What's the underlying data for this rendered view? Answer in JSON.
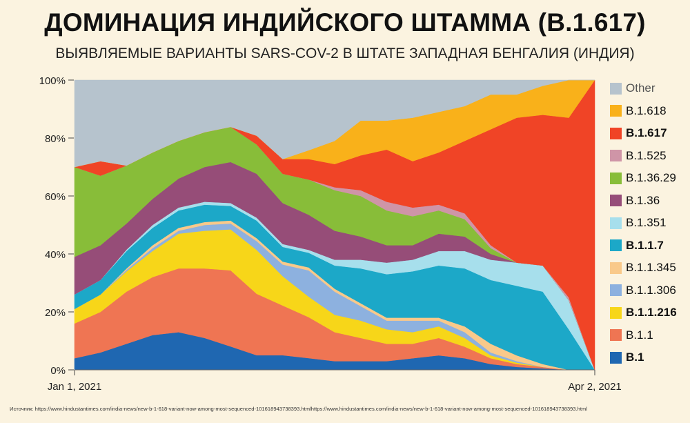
{
  "header": {
    "title": "ДОМИНАЦИЯ ИНДИЙСКОГО ШТАММА (B.1.617)",
    "subtitle": "ВЫЯВЛЯЕМЫЕ ВАРИАНТЫ SARS-COV-2 В ШТАТЕ ЗАПАДНАЯ БЕНГАЛИЯ (ИНДИЯ)"
  },
  "footer": {
    "source": "Источник: https://www.hindustantimes.com/india-news/new-b-1-618-variant-now-among-most-sequenced-101618943738393.htmlhttps://www.hindustantimes.com/india-news/new-b-1-618-variant-now-among-most-sequenced-101618943738393.html"
  },
  "chart_data": {
    "type": "area",
    "stacked": true,
    "normalized": true,
    "ylim": [
      0,
      100
    ],
    "y_ticks": [
      "0%",
      "20%",
      "40%",
      "60%",
      "80%",
      "100%"
    ],
    "x_tick_labels": [
      "Jan 1, 2021",
      "Apr 2, 2021"
    ],
    "x": [
      0,
      5,
      10,
      15,
      20,
      25,
      30,
      35,
      40,
      45,
      50,
      55,
      60,
      65,
      70,
      75,
      80,
      85,
      90,
      95,
      100
    ],
    "series": [
      {
        "name": "B.1",
        "color": "#1f67b1",
        "bold": true,
        "values": [
          4,
          6,
          9,
          12,
          13,
          11,
          8,
          5,
          5,
          4,
          3,
          3,
          3,
          4,
          5,
          4,
          2,
          1,
          0.5,
          0,
          0
        ]
      },
      {
        "name": "B.1.1",
        "color": "#ef7553",
        "bold": false,
        "values": [
          12,
          14,
          18,
          20,
          22,
          24,
          26,
          21,
          17,
          14,
          10,
          8,
          6,
          5,
          6,
          4,
          2,
          1,
          0.5,
          0,
          0
        ]
      },
      {
        "name": "B.1.1.216",
        "color": "#f7d619",
        "bold": true,
        "values": [
          5,
          6,
          7,
          9,
          12,
          13,
          14,
          15,
          10,
          7,
          6,
          6,
          5,
          4,
          4,
          3,
          1,
          0.5,
          0,
          0,
          0
        ]
      },
      {
        "name": "B.1.1.306",
        "color": "#8db1df",
        "bold": false,
        "values": [
          0,
          0,
          0.5,
          1,
          1,
          2,
          2,
          3,
          4,
          9,
          8,
          5,
          3,
          4,
          2,
          2,
          1,
          0.5,
          0,
          0,
          0
        ]
      },
      {
        "name": "B.1.1.345",
        "color": "#f9c98a",
        "bold": false,
        "values": [
          0,
          0,
          0.5,
          1,
          1,
          1,
          1,
          1,
          1,
          1,
          1,
          1,
          1,
          1,
          1,
          2,
          3,
          2,
          1,
          0,
          0
        ]
      },
      {
        "name": "B.1.1.7",
        "color": "#1ca8c8",
        "bold": true,
        "values": [
          5,
          5,
          6,
          6,
          6,
          6,
          5,
          6,
          5,
          5,
          8,
          12,
          15,
          16,
          18,
          20,
          22,
          24,
          25,
          14,
          0
        ]
      },
      {
        "name": "B.1.351",
        "color": "#a7dfec",
        "bold": false,
        "values": [
          0,
          0,
          0.5,
          1,
          1,
          1,
          1,
          1,
          1,
          1,
          2,
          3,
          4,
          4,
          5,
          6,
          7,
          8,
          9,
          10,
          0
        ]
      },
      {
        "name": "B.1.36",
        "color": "#964d78",
        "bold": false,
        "values": [
          13,
          12,
          9,
          9,
          10,
          12,
          14,
          15,
          14,
          12,
          10,
          8,
          6,
          5,
          6,
          5,
          2,
          0,
          0,
          0,
          0
        ]
      },
      {
        "name": "B.1.36.29",
        "color": "#88bd39",
        "bold": false,
        "values": [
          31,
          24,
          20,
          16,
          13,
          12,
          12,
          10,
          10,
          12,
          14,
          14,
          12,
          10,
          8,
          6,
          2,
          0,
          0,
          0,
          0
        ]
      },
      {
        "name": "B.1.525",
        "color": "#cf95a7",
        "bold": false,
        "values": [
          0,
          0,
          0,
          0,
          0,
          0,
          0,
          0,
          0,
          0,
          1,
          2,
          3,
          3,
          2,
          2,
          1,
          0,
          0,
          1,
          0
        ]
      },
      {
        "name": "B.1.617",
        "color": "#f04426",
        "bold": true,
        "values": [
          0,
          5,
          0,
          0,
          0,
          0,
          0,
          3,
          5,
          7,
          8,
          12,
          18,
          16,
          18,
          25,
          40,
          50,
          52,
          62,
          100
        ]
      },
      {
        "name": "B.1.618",
        "color": "#f9b11a",
        "bold": false,
        "values": [
          0,
          0,
          0,
          0,
          0,
          0,
          0,
          0,
          0,
          3,
          8,
          12,
          10,
          15,
          14,
          12,
          12,
          8,
          10,
          13,
          0
        ]
      },
      {
        "name": "Other",
        "color": "#b6c3cd",
        "bold": false,
        "values": [
          30,
          28,
          29.5,
          25,
          21,
          18,
          16,
          19,
          27,
          24,
          21,
          14,
          14,
          13,
          11,
          9,
          5,
          5,
          2,
          0,
          0
        ]
      }
    ]
  }
}
